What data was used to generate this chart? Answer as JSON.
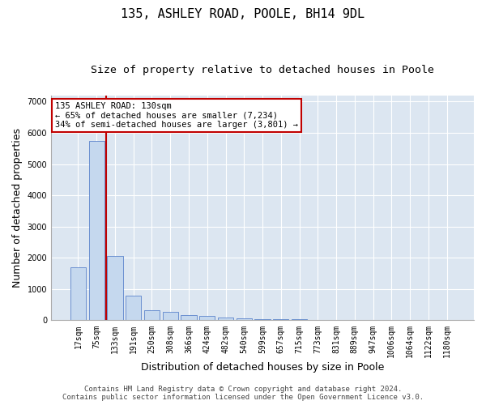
{
  "title1": "135, ASHLEY ROAD, POOLE, BH14 9DL",
  "title2": "Size of property relative to detached houses in Poole",
  "xlabel": "Distribution of detached houses by size in Poole",
  "ylabel": "Number of detached properties",
  "categories": [
    "17sqm",
    "75sqm",
    "133sqm",
    "191sqm",
    "250sqm",
    "308sqm",
    "366sqm",
    "424sqm",
    "482sqm",
    "540sqm",
    "599sqm",
    "657sqm",
    "715sqm",
    "773sqm",
    "831sqm",
    "889sqm",
    "947sqm",
    "1006sqm",
    "1064sqm",
    "1122sqm",
    "1180sqm"
  ],
  "values": [
    1700,
    5750,
    2050,
    800,
    330,
    280,
    160,
    130,
    90,
    60,
    45,
    35,
    50,
    0,
    0,
    0,
    0,
    0,
    0,
    0,
    0
  ],
  "bar_color": "#c5d8ee",
  "bar_edge_color": "#4472c4",
  "vline_color": "#c00000",
  "annotation_text": "135 ASHLEY ROAD: 130sqm\n← 65% of detached houses are smaller (7,234)\n34% of semi-detached houses are larger (3,801) →",
  "annotation_box_color": "white",
  "annotation_box_edge_color": "#c00000",
  "ylim": [
    0,
    7200
  ],
  "yticks": [
    0,
    1000,
    2000,
    3000,
    4000,
    5000,
    6000,
    7000
  ],
  "footer1": "Contains HM Land Registry data © Crown copyright and database right 2024.",
  "footer2": "Contains public sector information licensed under the Open Government Licence v3.0.",
  "plot_bg_color": "#dce6f1",
  "grid_color": "white",
  "title_fontsize": 11,
  "subtitle_fontsize": 9.5,
  "tick_fontsize": 7,
  "label_fontsize": 9,
  "footer_fontsize": 6.5
}
